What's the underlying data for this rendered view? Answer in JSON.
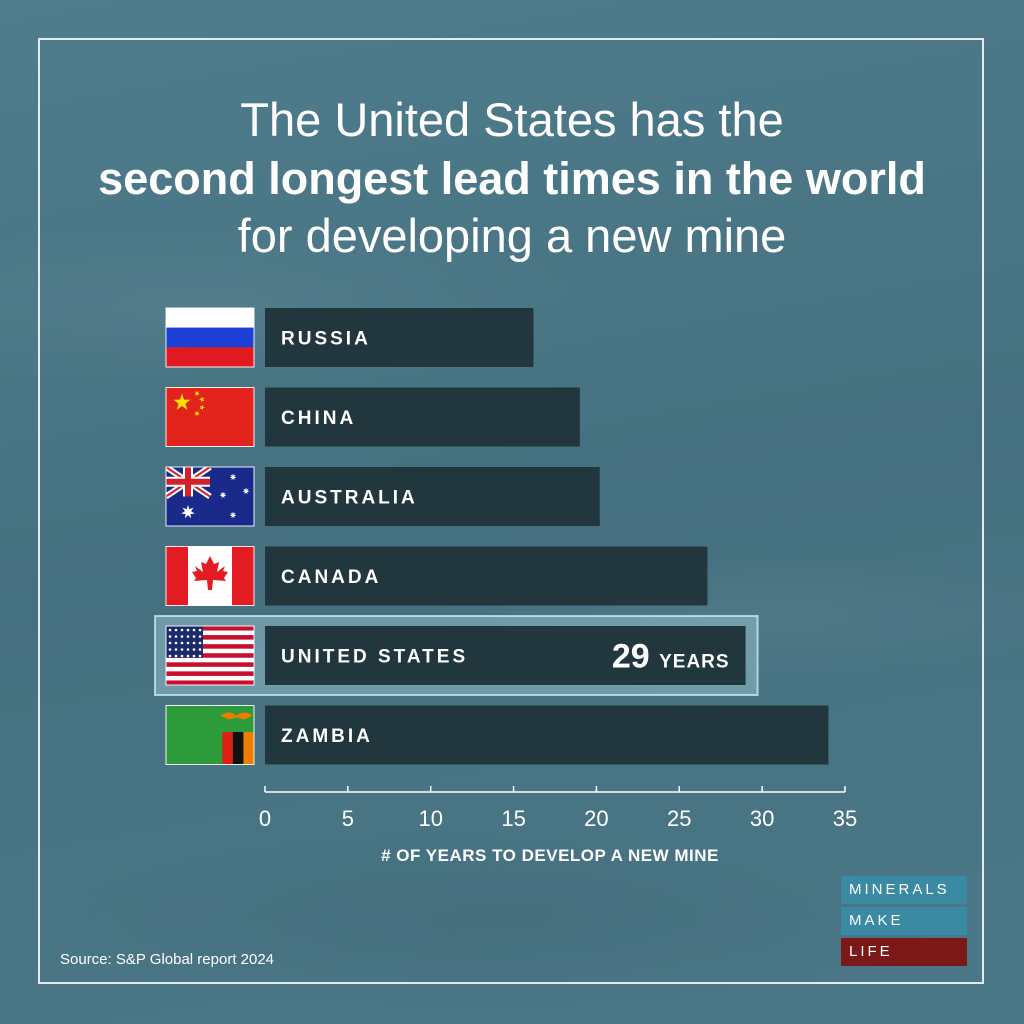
{
  "title": {
    "line1": "The United States has the",
    "line2": "second longest lead times in the world",
    "line3": "for developing a new mine"
  },
  "chart_data": {
    "type": "bar",
    "orientation": "horizontal",
    "categories": [
      "RUSSIA",
      "CHINA",
      "AUSTRALIA",
      "CANADA",
      "UNITED STATES",
      "ZAMBIA"
    ],
    "values": [
      16.2,
      19,
      20.2,
      26.7,
      29,
      34
    ],
    "highlight": {
      "category": "UNITED STATES",
      "value_text": "29",
      "unit_text": "YEARS"
    },
    "flags": [
      "russia-flag-icon",
      "china-flag-icon",
      "australia-flag-icon",
      "canada-flag-icon",
      "united-states-flag-icon",
      "zambia-flag-icon"
    ],
    "xlabel": "# OF YEARS TO DEVELOP A NEW MINE",
    "xlim": [
      0,
      35
    ],
    "xticks": [
      0,
      5,
      10,
      15,
      20,
      25,
      30,
      35
    ],
    "bar_color": "#22363e"
  },
  "source": "Source: S&P Global report 2024",
  "logo": {
    "line1": "MINERALS",
    "line2": "MAKE",
    "line3": "LIFE"
  }
}
